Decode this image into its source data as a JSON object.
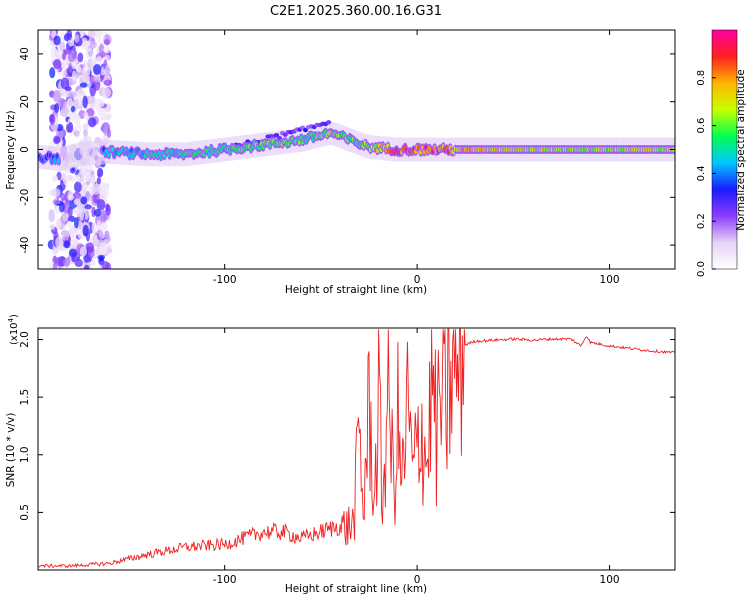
{
  "title": "C2E1.2025.360.00.16.G31",
  "chart_data": [
    {
      "type": "heatmap",
      "xlabel": "Height of straight line (km)",
      "ylabel": "Frequency (Hz)",
      "xlim": [
        -197,
        134
      ],
      "ylim": [
        -50,
        50
      ],
      "x_ticks": [
        -100,
        0,
        100
      ],
      "x_tick_labels": [
        "-100",
        "0",
        "100"
      ],
      "y_ticks": [
        -40,
        -20,
        0,
        20,
        40
      ],
      "y_tick_labels": [
        "-40",
        "-20",
        "0",
        "20",
        "40"
      ],
      "grid": false,
      "colorbar": {
        "label": "Normalized spectral amplitude",
        "range": [
          0,
          1
        ],
        "ticks": [
          0.0,
          0.2,
          0.4,
          0.6,
          0.8
        ],
        "tick_labels": [
          "0.0",
          "0.2",
          "0.4",
          "0.6",
          "0.8"
        ],
        "colormap": [
          "#ffffff",
          "#e6d2f5",
          "#8c3cff",
          "#1a1aff",
          "#00c8ff",
          "#00ff50",
          "#c8ff00",
          "#ffb400",
          "#ff2020",
          "#ff00a0"
        ]
      },
      "ridge": {
        "x": [
          -197,
          -185,
          -175,
          -160,
          -140,
          -120,
          -100,
          -80,
          -60,
          -45,
          -35,
          -25,
          -10,
          0,
          20,
          60,
          100,
          134
        ],
        "y": [
          -3,
          -4,
          -2,
          -1,
          -2,
          -2,
          0,
          2,
          4,
          7,
          4,
          1,
          0,
          0,
          0,
          0,
          0,
          0
        ],
        "amplitude": [
          0.35,
          0.4,
          0.2,
          0.45,
          0.45,
          0.5,
          0.55,
          0.55,
          0.55,
          0.6,
          0.55,
          0.6,
          0.85,
          0.9,
          0.75,
          0.65,
          0.65,
          0.65
        ]
      },
      "noise_band_x": [
        -190,
        -160
      ],
      "upper_branch": {
        "x": [
          -100,
          -80,
          -60,
          -45
        ],
        "y": [
          0,
          4,
          8,
          12
        ]
      }
    },
    {
      "type": "line",
      "xlabel": "Height of straight line (km)",
      "ylabel": "SNR (10 * v/v)",
      "y_multiplier_label": "(x10",
      "y_multiplier_exp": "4",
      "y_multiplier_close": ")",
      "xlim": [
        -197,
        134
      ],
      "ylim": [
        0,
        21000
      ],
      "x_ticks": [
        -100,
        0,
        100
      ],
      "x_tick_labels": [
        "-100",
        "0",
        "100"
      ],
      "y_ticks": [
        5000,
        10000,
        15000,
        20000
      ],
      "y_tick_labels": [
        "0.5",
        "1.0",
        "1.5",
        "2.0"
      ],
      "grid": false,
      "series": [
        {
          "color": "#ee2222",
          "x": [
            -197,
            -180,
            -160,
            -140,
            -120,
            -100,
            -90,
            -80,
            -70,
            -60,
            -50,
            -40,
            -33,
            -30,
            -28,
            -25,
            -22,
            -20,
            -18,
            -15,
            -12,
            -10,
            -8,
            -5,
            -2,
            0,
            2,
            5,
            8,
            10,
            12,
            15,
            18,
            20,
            22,
            25,
            30,
            40,
            50,
            60,
            70,
            80,
            85,
            88,
            90,
            100,
            110,
            120,
            134
          ],
          "y": [
            300,
            300,
            500,
            1200,
            1800,
            2000,
            2500,
            3000,
            3000,
            2500,
            3000,
            3500,
            4000,
            12000,
            5000,
            14000,
            6000,
            15000,
            5500,
            16000,
            6500,
            13000,
            7000,
            14000,
            8000,
            11000,
            13000,
            9000,
            17000,
            11000,
            15000,
            14000,
            17000,
            16500,
            19000,
            19500,
            19800,
            19900,
            20000,
            19900,
            20000,
            20000,
            19400,
            20300,
            19700,
            19400,
            19200,
            19000,
            18800
          ]
        }
      ]
    }
  ]
}
